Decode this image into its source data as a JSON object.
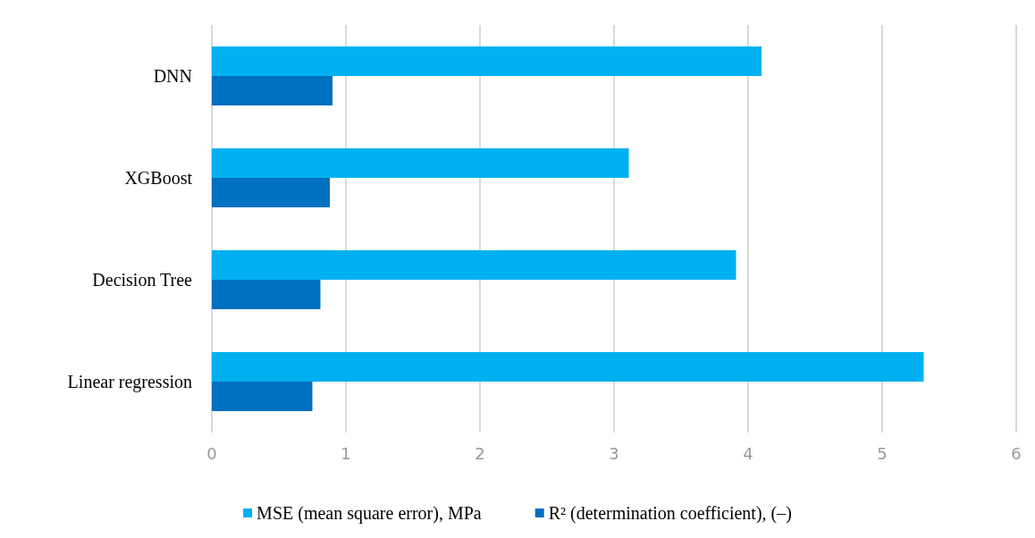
{
  "chart_data": {
    "type": "bar",
    "orientation": "horizontal",
    "categories": [
      "DNN",
      "XGBoost",
      "Decision Tree",
      "Linear regression"
    ],
    "series": [
      {
        "name": "MSE (mean square error), MPa",
        "color": "#00b0f0",
        "values": [
          4.1,
          3.11,
          3.91,
          5.31
        ]
      },
      {
        "name": "R² (determination coefficient), (–)",
        "color": "#0070c0",
        "values": [
          0.9,
          0.88,
          0.81,
          0.75
        ]
      }
    ],
    "xlim": [
      0,
      6
    ],
    "xticks": [
      0,
      1,
      2,
      3,
      4,
      5,
      6
    ],
    "grid": "x",
    "legend": "bottom"
  }
}
